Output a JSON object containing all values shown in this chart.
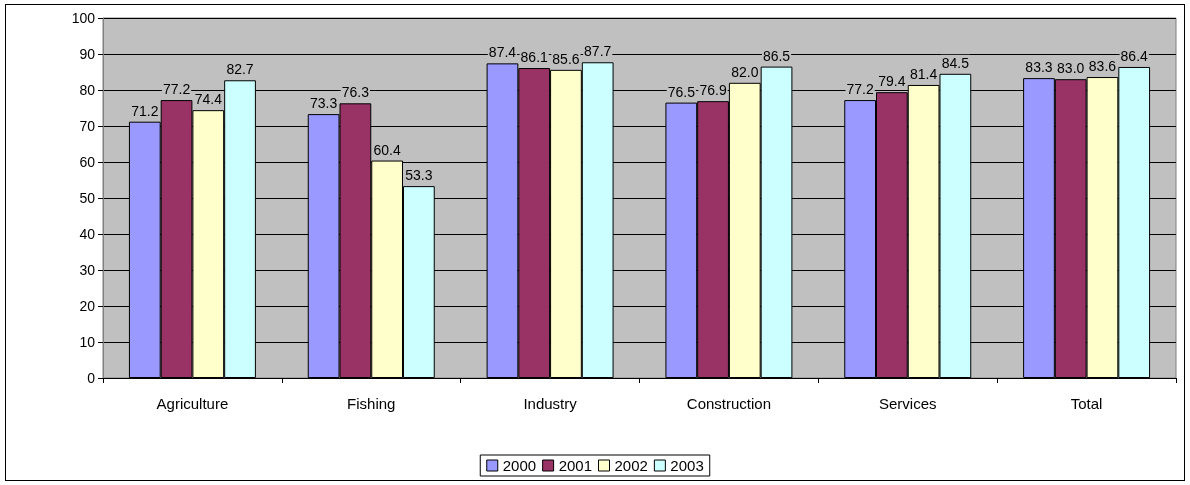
{
  "chart_data": {
    "type": "bar",
    "categories": [
      "Agriculture",
      "Fishing",
      "Industry",
      "Construction",
      "Services",
      "Total"
    ],
    "series": [
      {
        "name": "2000",
        "color": "#9999ff",
        "values": [
          71.2,
          73.3,
          87.4,
          76.5,
          77.2,
          83.3
        ],
        "value_labels": [
          "71.2",
          "73.3",
          "87.4",
          "76.5",
          "77.2",
          "83.3"
        ]
      },
      {
        "name": "2001",
        "color": "#993366",
        "values": [
          77.2,
          76.3,
          86.1,
          76.9,
          79.4,
          83.0
        ],
        "value_labels": [
          "77.2",
          "76.3",
          "86.1",
          "76.9",
          "79.4",
          "83.0"
        ]
      },
      {
        "name": "2002",
        "color": "#ffffcc",
        "values": [
          74.4,
          60.4,
          85.6,
          82.0,
          81.4,
          83.6
        ],
        "value_labels": [
          "74.4",
          "60.4",
          "85.6",
          "82.0",
          "81.4",
          "83.6"
        ]
      },
      {
        "name": "2003",
        "color": "#ccffff",
        "values": [
          82.7,
          53.3,
          87.7,
          86.5,
          84.5,
          86.4
        ],
        "value_labels": [
          "82.7",
          "53.3",
          "87.7",
          "86.5",
          "84.5",
          "86.4"
        ]
      }
    ],
    "ylim": [
      0,
      100
    ],
    "yticks": [
      0,
      10,
      20,
      30,
      40,
      50,
      60,
      70,
      80,
      90,
      100
    ],
    "grid": "y",
    "legend": "bottom"
  }
}
